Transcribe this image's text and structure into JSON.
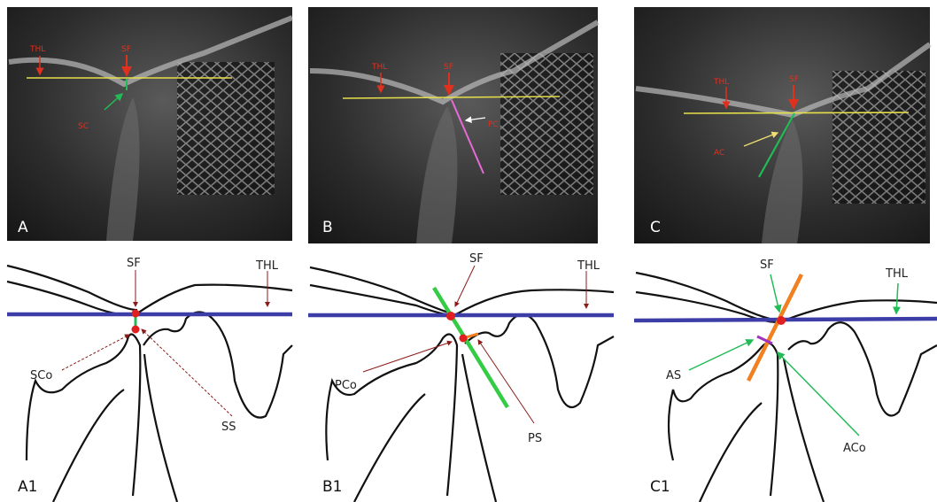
{
  "panels": [
    {
      "label": "A",
      "annotations": [
        "THL",
        "SF",
        "SC"
      ]
    },
    {
      "label": "B",
      "annotations": [
        "THL",
        "SF",
        "PC"
      ]
    },
    {
      "label": "C",
      "annotations": [
        "THL",
        "SF",
        "AC"
      ]
    },
    {
      "label": "A1",
      "annotations": [
        "SF",
        "THL",
        "SCo",
        "SS"
      ]
    },
    {
      "label": "B1",
      "annotations": [
        "SF",
        "THL",
        "PCo",
        "PS"
      ]
    },
    {
      "label": "C1",
      "annotations": [
        "SF",
        "THL",
        "AS",
        "ACo"
      ]
    }
  ]
}
